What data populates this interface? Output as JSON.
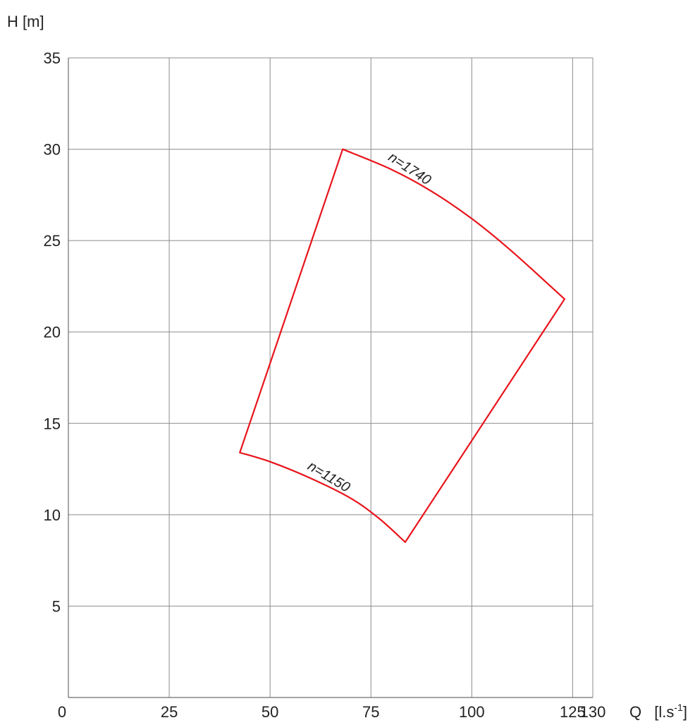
{
  "chart_data": {
    "type": "line",
    "title": "",
    "xlabel": "Q",
    "xunit_prefix": "[l.s",
    "xunit_exp": "-1",
    "xunit_suffix": "]",
    "ylabel": "H [m]",
    "xlim": [
      0,
      130
    ],
    "ylim": [
      0,
      35
    ],
    "xticks": [
      0,
      25,
      50,
      75,
      100,
      125,
      130
    ],
    "xtick_labels": [
      "0",
      "25",
      "50",
      "75",
      "100",
      "125",
      "130"
    ],
    "yticks": [
      5,
      10,
      15,
      20,
      25,
      30,
      35
    ],
    "ytick_labels": [
      "5",
      "10",
      "15",
      "20",
      "25",
      "30",
      "35"
    ],
    "grid": true,
    "envelope_color": "#e8141b",
    "curves": [
      {
        "label": "n=1740",
        "points": [
          [
            68,
            30
          ],
          [
            80,
            28.9
          ],
          [
            90,
            27.7
          ],
          [
            100,
            26.2
          ],
          [
            110,
            24.4
          ],
          [
            123,
            21.8
          ]
        ]
      },
      {
        "label": "n=1150",
        "points": [
          [
            42.5,
            13.4
          ],
          [
            50,
            12.9
          ],
          [
            60,
            12.0
          ],
          [
            70,
            10.9
          ],
          [
            77,
            9.8
          ],
          [
            83.5,
            8.5
          ]
        ]
      }
    ],
    "boundaries": [
      {
        "points": [
          [
            42.5,
            13.4
          ],
          [
            68,
            30
          ]
        ]
      },
      {
        "points": [
          [
            83.5,
            8.5
          ],
          [
            123,
            21.8
          ]
        ]
      }
    ]
  }
}
